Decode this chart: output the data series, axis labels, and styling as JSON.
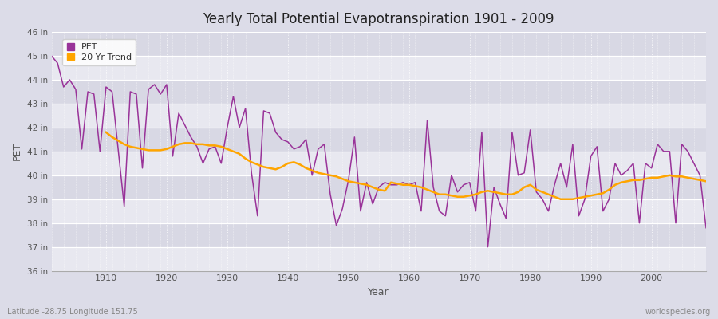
{
  "title": "Yearly Total Potential Evapotranspiration 1901 - 2009",
  "xlabel": "Year",
  "ylabel": "PET",
  "footnote_left": "Latitude -28.75 Longitude 151.75",
  "footnote_right": "worldspecies.org",
  "pet_color": "#993399",
  "trend_color": "#FFA500",
  "background_color": "#dcdce8",
  "plot_bg_color_light": "#e8e8f0",
  "plot_bg_color_dark": "#d8d8e4",
  "ylim_min": 36,
  "ylim_max": 46,
  "years": [
    1901,
    1902,
    1903,
    1904,
    1905,
    1906,
    1907,
    1908,
    1909,
    1910,
    1911,
    1912,
    1913,
    1914,
    1915,
    1916,
    1917,
    1918,
    1919,
    1920,
    1921,
    1922,
    1923,
    1924,
    1925,
    1926,
    1927,
    1928,
    1929,
    1930,
    1931,
    1932,
    1933,
    1934,
    1935,
    1936,
    1937,
    1938,
    1939,
    1940,
    1941,
    1942,
    1943,
    1944,
    1945,
    1946,
    1947,
    1948,
    1949,
    1950,
    1951,
    1952,
    1953,
    1954,
    1955,
    1956,
    1957,
    1958,
    1959,
    1960,
    1961,
    1962,
    1963,
    1964,
    1965,
    1966,
    1967,
    1968,
    1969,
    1970,
    1971,
    1972,
    1973,
    1974,
    1975,
    1976,
    1977,
    1978,
    1979,
    1980,
    1981,
    1982,
    1983,
    1984,
    1985,
    1986,
    1987,
    1988,
    1989,
    1990,
    1991,
    1992,
    1993,
    1994,
    1995,
    1996,
    1997,
    1998,
    1999,
    2000,
    2001,
    2002,
    2003,
    2004,
    2005,
    2006,
    2007,
    2008,
    2009
  ],
  "pet_values": [
    45.0,
    44.7,
    43.7,
    44.0,
    43.6,
    41.1,
    43.5,
    43.4,
    41.0,
    43.7,
    43.5,
    41.1,
    38.7,
    43.5,
    43.4,
    40.3,
    43.6,
    43.8,
    43.4,
    43.8,
    40.8,
    42.6,
    42.1,
    41.6,
    41.2,
    40.5,
    41.1,
    41.2,
    40.5,
    42.0,
    43.3,
    42.0,
    42.8,
    40.1,
    38.3,
    42.7,
    42.6,
    41.8,
    41.5,
    41.4,
    41.1,
    41.2,
    41.5,
    40.0,
    41.1,
    41.3,
    39.2,
    37.9,
    38.6,
    39.8,
    41.6,
    38.5,
    39.7,
    38.8,
    39.5,
    39.7,
    39.6,
    39.6,
    39.7,
    39.6,
    39.7,
    38.5,
    42.3,
    39.5,
    38.5,
    38.3,
    40.0,
    39.3,
    39.6,
    39.7,
    38.5,
    41.8,
    37.0,
    39.5,
    38.8,
    38.2,
    41.8,
    40.0,
    40.1,
    41.9,
    39.3,
    39.0,
    38.5,
    39.6,
    40.5,
    39.5,
    41.3,
    38.3,
    39.0,
    40.8,
    41.2,
    38.5,
    39.0,
    40.5,
    40.0,
    40.2,
    40.5,
    38.0,
    40.5,
    40.3,
    41.3,
    41.0,
    41.0,
    38.0,
    41.3,
    41.0,
    40.5,
    40.0,
    37.8
  ],
  "trend_years": [
    1910,
    1911,
    1912,
    1913,
    1914,
    1915,
    1916,
    1917,
    1918,
    1919,
    1920,
    1921,
    1922,
    1923,
    1924,
    1925,
    1926,
    1927,
    1928,
    1929,
    1930,
    1931,
    1932,
    1933,
    1934,
    1935,
    1936,
    1937,
    1938,
    1939,
    1940,
    1941,
    1942,
    1943,
    1944,
    1945,
    1946,
    1947,
    1948,
    1949,
    1950,
    1951,
    1952,
    1953,
    1954,
    1955,
    1956,
    1957,
    1958,
    1959,
    1960,
    1961,
    1962,
    1963,
    1964,
    1965,
    1966,
    1967,
    1968,
    1969,
    1970,
    1971,
    1972,
    1973,
    1974,
    1975,
    1976,
    1977,
    1978,
    1979,
    1980,
    1981,
    1982,
    1983,
    1984,
    1985,
    1986,
    1987,
    1988,
    1989,
    1990,
    1991,
    1992,
    1993,
    1994,
    1995,
    1996,
    1997,
    1998,
    1999,
    2000,
    2001,
    2002,
    2003,
    2004,
    2005,
    2006,
    2007,
    2008,
    2009
  ],
  "trend_values": [
    41.8,
    41.6,
    41.45,
    41.3,
    41.2,
    41.15,
    41.1,
    41.05,
    41.05,
    41.05,
    41.1,
    41.2,
    41.3,
    41.35,
    41.35,
    41.3,
    41.3,
    41.25,
    41.25,
    41.2,
    41.1,
    41.0,
    40.9,
    40.7,
    40.55,
    40.45,
    40.35,
    40.3,
    40.25,
    40.35,
    40.5,
    40.55,
    40.45,
    40.3,
    40.2,
    40.1,
    40.05,
    40.0,
    39.95,
    39.85,
    39.75,
    39.7,
    39.65,
    39.6,
    39.5,
    39.4,
    39.35,
    39.7,
    39.65,
    39.6,
    39.6,
    39.55,
    39.5,
    39.4,
    39.3,
    39.2,
    39.2,
    39.15,
    39.1,
    39.1,
    39.15,
    39.2,
    39.3,
    39.35,
    39.3,
    39.25,
    39.2,
    39.2,
    39.3,
    39.5,
    39.6,
    39.4,
    39.3,
    39.2,
    39.1,
    39.0,
    39.0,
    39.0,
    39.05,
    39.1,
    39.15,
    39.2,
    39.25,
    39.4,
    39.6,
    39.7,
    39.75,
    39.8,
    39.8,
    39.85,
    39.9,
    39.9,
    39.95,
    40.0,
    39.95,
    39.95,
    39.9,
    39.85,
    39.8,
    39.75
  ]
}
